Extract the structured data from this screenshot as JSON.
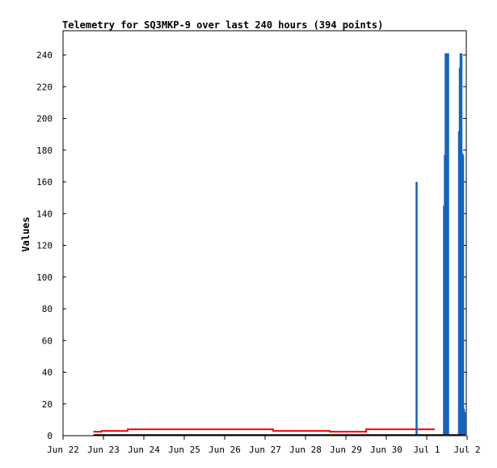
{
  "chart_data": {
    "type": "line",
    "title": "Telemetry for SQ3MKP-9 over last 240 hours (394 points)",
    "xlabel": "",
    "ylabel": "Values",
    "x_ticks": [
      "Jun 22",
      "Jun 23",
      "Jun 24",
      "Jun 25",
      "Jun 26",
      "Jun 27",
      "Jun 28",
      "Jun 29",
      "Jun 30",
      "Jul 1",
      "Jul 2"
    ],
    "xlim": [
      0,
      10
    ],
    "ylim": [
      0,
      255
    ],
    "y_ticks": [
      0,
      20,
      40,
      60,
      80,
      100,
      120,
      140,
      160,
      180,
      200,
      220,
      240
    ],
    "grid": false,
    "legend": "none",
    "colors": {
      "series_red": "#ff0000",
      "series_blue": "#1465c0",
      "baseline": "#000000"
    },
    "series": [
      {
        "style": "step",
        "color": "#ff0000",
        "x": [
          0.75,
          0.95,
          1.35,
          1.6,
          1.7,
          2.5,
          3.5,
          4.5,
          5.05,
          5.2,
          6.0,
          6.55,
          6.6,
          7.3,
          7.5,
          8.0,
          8.45,
          8.9,
          9.2
        ],
        "y": [
          2.5,
          3,
          3,
          4,
          4,
          4,
          4,
          4,
          4,
          3,
          3,
          3,
          2.5,
          2.5,
          4,
          4,
          4,
          4,
          4
        ]
      },
      {
        "style": "spike",
        "color": "#1465c0",
        "x": [
          8.75,
          9.43,
          9.45,
          9.47,
          9.49,
          9.51,
          9.53,
          9.8,
          9.82,
          9.84,
          9.86,
          9.88,
          9.9,
          9.92,
          9.94
        ],
        "y": [
          160,
          145,
          177,
          241,
          241,
          241,
          241,
          192,
          232,
          241,
          241,
          178,
          177,
          17,
          15
        ]
      },
      {
        "style": "step",
        "color": "#000000",
        "x": [
          0.75,
          9.95
        ],
        "y": [
          0.5,
          0.5
        ]
      }
    ]
  }
}
